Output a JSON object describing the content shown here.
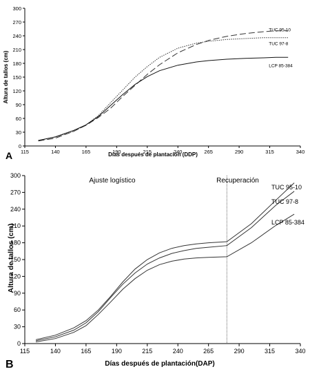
{
  "panel_labels": {
    "a": "A",
    "b": "B"
  },
  "chart_data": [
    {
      "type": "line",
      "panel": "A",
      "xlabel": "Días después de plantación (DDP)",
      "ylabel": "Altura de tallos (cm)",
      "xlim": [
        115,
        340
      ],
      "ylim": [
        0,
        300
      ],
      "x_ticks": [
        115,
        140,
        165,
        190,
        215,
        240,
        265,
        290,
        315,
        340
      ],
      "y_ticks": [
        0,
        30,
        60,
        90,
        120,
        150,
        180,
        210,
        240,
        270,
        300
      ],
      "grid": false,
      "series": [
        {
          "name": "TUC 95-10",
          "style": "long-dash",
          "x": [
            126,
            140,
            155,
            165,
            175,
            185,
            195,
            205,
            215,
            225,
            240,
            255,
            265,
            280,
            295,
            310,
            320,
            330
          ],
          "y": [
            11,
            17,
            32,
            45,
            62,
            82,
            108,
            132,
            156,
            177,
            203,
            221,
            230,
            239,
            245,
            249,
            251,
            251
          ]
        },
        {
          "name": "TUC 97-8",
          "style": "dotted",
          "x": [
            126,
            140,
            155,
            165,
            175,
            185,
            195,
            205,
            215,
            225,
            240,
            255,
            265,
            280,
            295,
            310,
            320,
            330
          ],
          "y": [
            12,
            19,
            32,
            46,
            66,
            94,
            122,
            150,
            173,
            193,
            213,
            224,
            228,
            232,
            234,
            236,
            236,
            236
          ]
        },
        {
          "name": "LCP 85-384",
          "style": "solid",
          "x": [
            126,
            140,
            155,
            165,
            175,
            185,
            195,
            205,
            215,
            225,
            240,
            255,
            265,
            280,
            295,
            310,
            320,
            330
          ],
          "y": [
            12,
            20,
            34,
            46,
            64,
            88,
            112,
            134,
            151,
            164,
            176,
            183,
            186,
            189,
            191,
            192,
            193,
            193
          ]
        }
      ]
    },
    {
      "type": "line",
      "panel": "B",
      "xlabel": "Días después de plantación(DAP)",
      "ylabel": "Altura de tallos (cm)",
      "xlim": [
        115,
        340
      ],
      "ylim": [
        0,
        300
      ],
      "x_ticks": [
        115,
        140,
        165,
        190,
        215,
        240,
        265,
        290,
        315,
        340
      ],
      "y_ticks": [
        0,
        30,
        60,
        90,
        120,
        150,
        180,
        210,
        240,
        270,
        300
      ],
      "grid": false,
      "annotations": {
        "left_region": "Ajuste logístico",
        "right_region": "Recuperación",
        "divider_x": 280
      },
      "series": [
        {
          "name": "TUC 95-10",
          "style": "solid",
          "x": [
            124,
            140,
            155,
            165,
            175,
            185,
            195,
            205,
            215,
            225,
            235,
            245,
            255,
            265,
            280,
            300,
            320,
            335
          ],
          "y": [
            7,
            15,
            28,
            41,
            60,
            84,
            110,
            133,
            150,
            162,
            170,
            175,
            178,
            180,
            182,
            214,
            256,
            287
          ]
        },
        {
          "name": "TUC 97-8",
          "style": "solid",
          "x": [
            124,
            140,
            155,
            165,
            175,
            185,
            195,
            205,
            215,
            225,
            235,
            245,
            255,
            265,
            280,
            300,
            320,
            335
          ],
          "y": [
            5,
            12,
            24,
            37,
            57,
            82,
            106,
            126,
            142,
            153,
            161,
            166,
            170,
            172,
            175,
            207,
            247,
            272
          ]
        },
        {
          "name": "LCP 85-384",
          "style": "solid",
          "x": [
            124,
            140,
            155,
            165,
            175,
            185,
            195,
            205,
            215,
            225,
            235,
            245,
            255,
            265,
            280,
            300,
            320,
            335
          ],
          "y": [
            3,
            9,
            20,
            32,
            52,
            74,
            97,
            116,
            131,
            141,
            147,
            151,
            153,
            154,
            155,
            180,
            211,
            231
          ]
        }
      ]
    }
  ]
}
